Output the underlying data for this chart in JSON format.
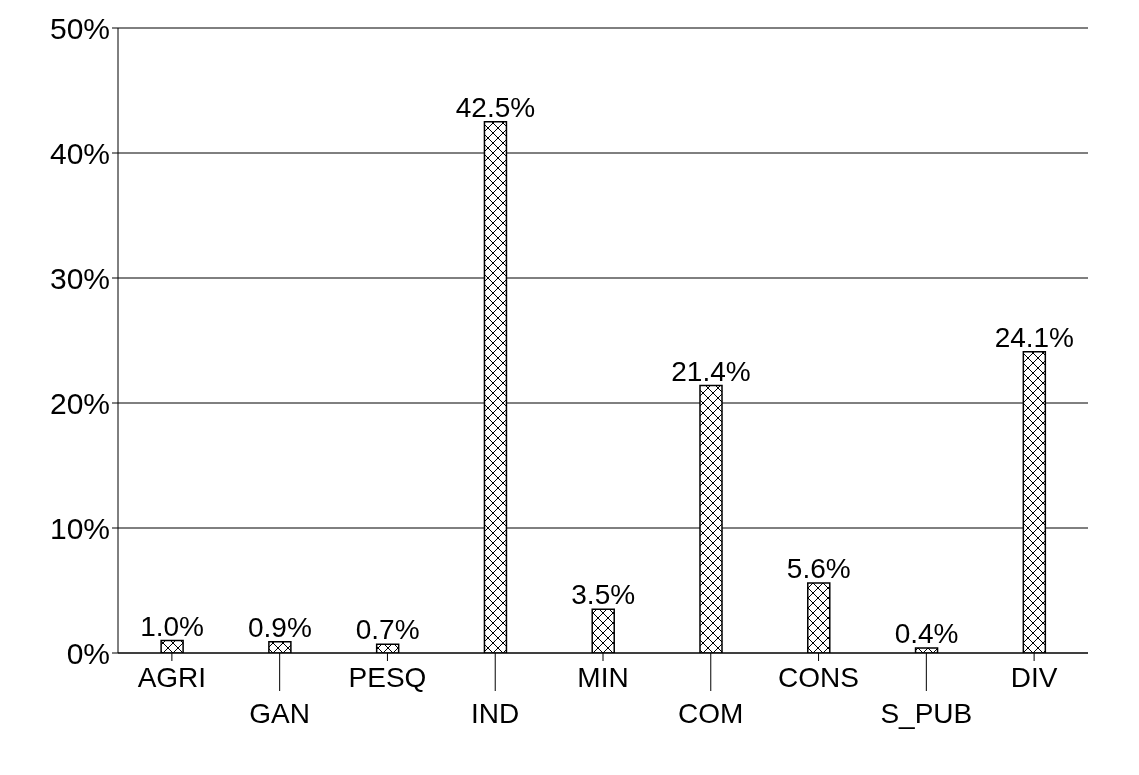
{
  "chart_data": {
    "type": "bar",
    "categories": [
      "AGRI",
      "GAN",
      "PESQ",
      "IND",
      "MIN",
      "COM",
      "CONS",
      "S_PUB",
      "DIV"
    ],
    "values": [
      1.0,
      0.9,
      0.7,
      42.5,
      3.5,
      21.4,
      5.6,
      0.4,
      24.1
    ],
    "value_labels": [
      "1.0%",
      "0.9%",
      "0.7%",
      "42.5%",
      "3.5%",
      "21.4%",
      "5.6%",
      "0.4%",
      "24.1%"
    ],
    "color": "#000000",
    "ylim": [
      0,
      50
    ],
    "yticks": [
      {
        "value": 0,
        "label": "0%"
      },
      {
        "value": 10,
        "label": "10%"
      },
      {
        "value": 20,
        "label": "20%"
      },
      {
        "value": 30,
        "label": "30%"
      },
      {
        "value": 40,
        "label": "40%"
      },
      {
        "value": 50,
        "label": "50%"
      }
    ],
    "grid": "y"
  }
}
